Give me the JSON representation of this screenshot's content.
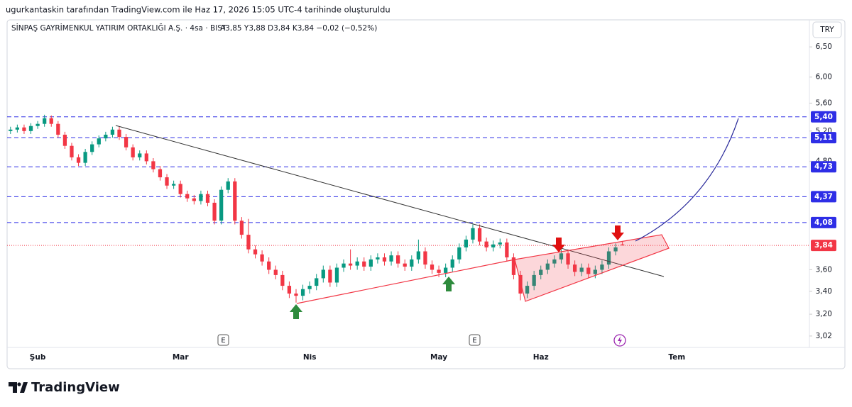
{
  "header": {
    "attribution": "ugurkantaskin tarafından TradingView.com ile Haz 17, 2026 15:05 UTC-4 tarihinde oluşturuldu"
  },
  "brand": "TradingView",
  "chart_data": {
    "type": "candlestick",
    "title": "SİNPAŞ GAYRİMENKUL YATIRIM ORTAKLIĞI A.Ş. · 4sa · BIST",
    "legend_values": "A3,85 Y3,88 D3,84 K3,84 −0,02 (−0,52%)",
    "currency": "TRY",
    "events": [
      "E",
      "E"
    ],
    "up_color": "#089981",
    "down_color": "#f23645",
    "log_scale": true,
    "grid": false,
    "ylim": [
      2.93,
      6.7
    ],
    "yticks": [
      {
        "value": 3.02,
        "label": "3,02"
      },
      {
        "value": 3.2,
        "label": "3,20"
      },
      {
        "value": 3.4,
        "label": "3,40"
      },
      {
        "value": 3.6,
        "label": "3,60"
      },
      {
        "value": 4.8,
        "label": "4,80"
      },
      {
        "value": 5.2,
        "label": "5,20"
      },
      {
        "value": 5.6,
        "label": "5,60"
      },
      {
        "value": 6,
        "label": "6,00"
      },
      {
        "value": 6.5,
        "label": "6,50"
      }
    ],
    "levels": [
      {
        "value": 5.4,
        "label": "5,40"
      },
      {
        "value": 5.11,
        "label": "5,11"
      },
      {
        "value": 4.73,
        "label": "4,73"
      },
      {
        "value": 4.37,
        "label": "4,37"
      },
      {
        "value": 4.08,
        "label": "4,08"
      }
    ],
    "level_color": "#2e2ee6",
    "last_price": {
      "value": 3.84,
      "label": "3,84"
    },
    "last_price_color": "#f23645",
    "categories": [
      null,
      null,
      null,
      null,
      "Şub",
      null,
      null,
      null,
      null,
      null,
      null,
      null,
      null,
      null,
      null,
      null,
      null,
      null,
      null,
      null,
      null,
      null,
      null,
      null,
      null,
      "Mar",
      null,
      null,
      null,
      null,
      null,
      null,
      null,
      null,
      null,
      null,
      null,
      null,
      null,
      null,
      null,
      null,
      null,
      null,
      "Nis",
      null,
      null,
      null,
      null,
      null,
      null,
      null,
      null,
      null,
      null,
      null,
      null,
      null,
      null,
      null,
      null,
      null,
      null,
      "May",
      null,
      null,
      null,
      null,
      null,
      null,
      null,
      null,
      null,
      null,
      null,
      null,
      null,
      null,
      "Haz",
      null,
      null,
      null,
      null,
      null,
      null,
      null,
      null,
      null,
      null,
      null,
      null,
      null,
      null,
      null,
      null,
      null,
      null,
      null,
      "Tem",
      null,
      null,
      null,
      null,
      null,
      null,
      null,
      null,
      null,
      null,
      null,
      null,
      null,
      null,
      null,
      null,
      null,
      null,
      null
    ],
    "ohlc": [
      [
        5.2,
        5.26,
        5.16,
        5.22
      ],
      [
        5.22,
        5.29,
        5.18,
        5.25
      ],
      [
        5.25,
        5.29,
        5.16,
        5.2
      ],
      [
        5.2,
        5.31,
        5.16,
        5.27
      ],
      [
        5.27,
        5.34,
        5.23,
        5.3
      ],
      [
        5.3,
        5.43,
        5.26,
        5.38
      ],
      [
        5.38,
        5.42,
        5.26,
        5.3
      ],
      [
        5.3,
        5.34,
        5.11,
        5.15
      ],
      [
        5.15,
        5.19,
        4.96,
        5.0
      ],
      [
        5.0,
        5.04,
        4.81,
        4.85
      ],
      [
        4.85,
        4.89,
        4.74,
        4.78
      ],
      [
        4.78,
        4.96,
        4.74,
        4.92
      ],
      [
        4.92,
        5.06,
        4.88,
        5.02
      ],
      [
        5.02,
        5.14,
        4.98,
        5.1
      ],
      [
        5.1,
        5.19,
        5.06,
        5.15
      ],
      [
        5.15,
        5.26,
        5.11,
        5.22
      ],
      [
        5.22,
        5.26,
        5.08,
        5.12
      ],
      [
        5.12,
        5.16,
        4.94,
        4.98
      ],
      [
        4.98,
        5.02,
        4.81,
        4.85
      ],
      [
        4.85,
        4.94,
        4.81,
        4.9
      ],
      [
        4.9,
        4.94,
        4.76,
        4.8
      ],
      [
        4.8,
        4.84,
        4.66,
        4.7
      ],
      [
        4.7,
        4.74,
        4.56,
        4.6
      ],
      [
        4.6,
        4.64,
        4.46,
        4.5
      ],
      [
        4.5,
        4.56,
        4.46,
        4.52
      ],
      [
        4.52,
        4.56,
        4.36,
        4.4
      ],
      [
        4.4,
        4.44,
        4.31,
        4.35
      ],
      [
        4.35,
        4.39,
        4.28,
        4.32
      ],
      [
        4.32,
        4.44,
        4.28,
        4.4
      ],
      [
        4.4,
        4.44,
        4.26,
        4.3
      ],
      [
        4.3,
        4.34,
        4.06,
        4.1
      ],
      [
        4.1,
        4.49,
        4.06,
        4.45
      ],
      [
        4.45,
        4.59,
        4.41,
        4.55
      ],
      [
        4.55,
        4.59,
        4.06,
        4.1
      ],
      [
        4.1,
        4.14,
        3.91,
        3.95
      ],
      [
        3.95,
        4.12,
        3.76,
        3.8
      ],
      [
        3.8,
        3.84,
        3.71,
        3.75
      ],
      [
        3.75,
        3.79,
        3.64,
        3.68
      ],
      [
        3.68,
        3.72,
        3.56,
        3.6
      ],
      [
        3.6,
        3.64,
        3.51,
        3.55
      ],
      [
        3.55,
        3.59,
        3.41,
        3.45
      ],
      [
        3.45,
        3.49,
        3.34,
        3.38
      ],
      [
        3.38,
        3.42,
        3.3,
        3.36
      ],
      [
        3.36,
        3.46,
        3.32,
        3.42
      ],
      [
        3.42,
        3.49,
        3.38,
        3.45
      ],
      [
        3.45,
        3.56,
        3.41,
        3.52
      ],
      [
        3.52,
        3.64,
        3.48,
        3.6
      ],
      [
        3.6,
        3.64,
        3.44,
        3.48
      ],
      [
        3.48,
        3.66,
        3.44,
        3.62
      ],
      [
        3.62,
        3.7,
        3.58,
        3.66
      ],
      [
        3.66,
        3.8,
        3.6,
        3.64
      ],
      [
        3.64,
        3.72,
        3.6,
        3.68
      ],
      [
        3.68,
        3.72,
        3.59,
        3.63
      ],
      [
        3.63,
        3.74,
        3.59,
        3.7
      ],
      [
        3.7,
        3.76,
        3.66,
        3.72
      ],
      [
        3.72,
        3.76,
        3.64,
        3.68
      ],
      [
        3.68,
        3.78,
        3.64,
        3.74
      ],
      [
        3.74,
        3.78,
        3.62,
        3.66
      ],
      [
        3.66,
        3.7,
        3.59,
        3.63
      ],
      [
        3.63,
        3.74,
        3.59,
        3.7
      ],
      [
        3.7,
        3.9,
        3.66,
        3.78
      ],
      [
        3.78,
        3.82,
        3.61,
        3.65
      ],
      [
        3.65,
        3.69,
        3.56,
        3.6
      ],
      [
        3.6,
        3.64,
        3.53,
        3.57
      ],
      [
        3.57,
        3.66,
        3.53,
        3.62
      ],
      [
        3.62,
        3.74,
        3.58,
        3.7
      ],
      [
        3.7,
        3.86,
        3.66,
        3.82
      ],
      [
        3.82,
        3.94,
        3.78,
        3.9
      ],
      [
        3.9,
        4.06,
        3.86,
        4.02
      ],
      [
        4.02,
        4.06,
        3.84,
        3.88
      ],
      [
        3.88,
        3.92,
        3.78,
        3.82
      ],
      [
        3.82,
        3.89,
        3.78,
        3.85
      ],
      [
        3.85,
        3.91,
        3.81,
        3.87
      ],
      [
        3.87,
        3.91,
        3.68,
        3.72
      ],
      [
        3.72,
        3.76,
        3.51,
        3.55
      ],
      [
        3.55,
        3.59,
        3.32,
        3.38
      ],
      [
        3.38,
        3.49,
        3.34,
        3.45
      ],
      [
        3.45,
        3.59,
        3.41,
        3.55
      ],
      [
        3.55,
        3.64,
        3.51,
        3.6
      ],
      [
        3.6,
        3.7,
        3.56,
        3.66
      ],
      [
        3.66,
        3.74,
        3.62,
        3.7
      ],
      [
        3.7,
        3.8,
        3.66,
        3.76
      ],
      [
        3.76,
        3.8,
        3.61,
        3.65
      ],
      [
        3.65,
        3.69,
        3.54,
        3.58
      ],
      [
        3.58,
        3.66,
        3.54,
        3.62
      ],
      [
        3.62,
        3.66,
        3.52,
        3.56
      ],
      [
        3.56,
        3.64,
        3.52,
        3.6
      ],
      [
        3.6,
        3.69,
        3.56,
        3.65
      ],
      [
        3.65,
        3.82,
        3.61,
        3.78
      ],
      [
        3.78,
        3.86,
        3.74,
        3.82
      ],
      [
        3.85,
        3.88,
        3.84,
        3.84
      ],
      null,
      null,
      null,
      null,
      null,
      null,
      null,
      null,
      null,
      null,
      null,
      null,
      null,
      null,
      null,
      null,
      null,
      null,
      null,
      null,
      null,
      null,
      null,
      null,
      null,
      null,
      null
    ]
  }
}
